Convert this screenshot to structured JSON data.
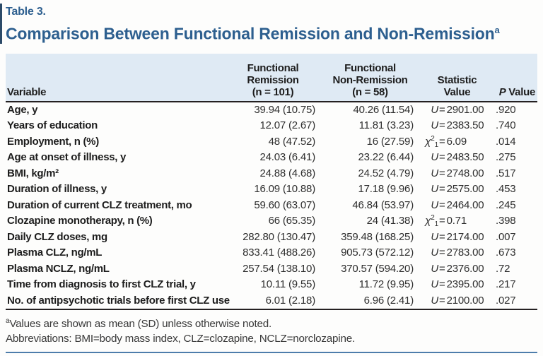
{
  "title": {
    "label": "Table 3.",
    "heading": "Comparison Between Functional Remission and Non-Remission",
    "heading_sup": "a"
  },
  "symbols": {
    "equals": "="
  },
  "table": {
    "header": {
      "variable": "Variable",
      "col2_lines": [
        "Functional",
        "Remission",
        "(n = 101)"
      ],
      "col3_lines": [
        "Functional",
        "Non-Remission",
        "(n = 58)"
      ],
      "stat_lines": [
        "Statistic",
        "Value"
      ],
      "p_italic": "P",
      "p_rest": " Value"
    },
    "rows": [
      {
        "variable": "Age, y",
        "remission": "39.94 (10.75)",
        "non_remission": "40.26 (11.54)",
        "stat": {
          "pre": "U",
          "sup": "",
          "sub": "",
          "value": "2901.00"
        },
        "p": ".920"
      },
      {
        "variable": "Years of education",
        "remission": "12.07 (2.67)",
        "non_remission": "11.81 (3.23)",
        "stat": {
          "pre": "U",
          "sup": "",
          "sub": "",
          "value": "2383.50"
        },
        "p": ".740"
      },
      {
        "variable": "Employment, n (%)",
        "remission": "48 (47.52)",
        "non_remission": "16 (27.59)",
        "stat": {
          "pre": "χ",
          "sup": "2",
          "sub": "1",
          "value": "6.09"
        },
        "p": ".014"
      },
      {
        "variable": "Age at onset of illness, y",
        "remission": "24.03 (6.41)",
        "non_remission": "23.22 (6.44)",
        "stat": {
          "pre": "U",
          "sup": "",
          "sub": "",
          "value": "2483.50"
        },
        "p": ".275"
      },
      {
        "variable": "BMI, kg/m²",
        "remission": "24.88 (4.68)",
        "non_remission": "24.52 (4.79)",
        "stat": {
          "pre": "U",
          "sup": "",
          "sub": "",
          "value": "2748.00"
        },
        "p": ".517"
      },
      {
        "variable": "Duration of illness, y",
        "remission": "16.09 (10.88)",
        "non_remission": "17.18 (9.96)",
        "stat": {
          "pre": "U",
          "sup": "",
          "sub": "",
          "value": "2575.00"
        },
        "p": ".453"
      },
      {
        "variable": "Duration of current CLZ treatment, mo",
        "remission": "59.60 (63.07)",
        "non_remission": "46.84 (53.97)",
        "stat": {
          "pre": "U",
          "sup": "",
          "sub": "",
          "value": "2464.00"
        },
        "p": ".245"
      },
      {
        "variable": "Clozapine monotherapy, n (%)",
        "remission": "66 (65.35)",
        "non_remission": "24 (41.38)",
        "stat": {
          "pre": "χ",
          "sup": "2",
          "sub": "1",
          "value": "0.71"
        },
        "p": ".398"
      },
      {
        "variable": "Daily CLZ doses, mg",
        "remission": "282.80 (130.47)",
        "non_remission": "359.48 (168.25)",
        "stat": {
          "pre": "U",
          "sup": "",
          "sub": "",
          "value": "2174.00"
        },
        "p": ".007"
      },
      {
        "variable": "Plasma CLZ, ng/mL",
        "remission": "833.41 (488.26)",
        "non_remission": "905.73 (572.12)",
        "stat": {
          "pre": "U",
          "sup": "",
          "sub": "",
          "value": "2783.00"
        },
        "p": ".673"
      },
      {
        "variable": "Plasma NCLZ, ng/mL",
        "remission": "257.54 (138.10)",
        "non_remission": "370.57 (594.20)",
        "stat": {
          "pre": "U",
          "sup": "",
          "sub": "",
          "value": "2376.00"
        },
        "p": ".72"
      },
      {
        "variable": "Time from diagnosis to first CLZ trial, y",
        "remission": "10.11 (9.55)",
        "non_remission": "11.72 (9.95)",
        "stat": {
          "pre": "U",
          "sup": "",
          "sub": "",
          "value": "2395.00"
        },
        "p": ".217"
      },
      {
        "variable": "No. of antipsychotic trials before first CLZ use",
        "remission": "6.01 (2.18)",
        "non_remission": "6.96 (2.41)",
        "stat": {
          "pre": "U",
          "sup": "",
          "sub": "",
          "value": "2100.00"
        },
        "p": ".027"
      }
    ]
  },
  "footnotes": [
    {
      "sup": "a",
      "text": "Values are shown as mean (SD) unless otherwise noted."
    },
    {
      "sup": "",
      "text": "Abbreviations: BMI=body mass index, CLZ=clozapine, NCLZ=norclozapine."
    }
  ]
}
